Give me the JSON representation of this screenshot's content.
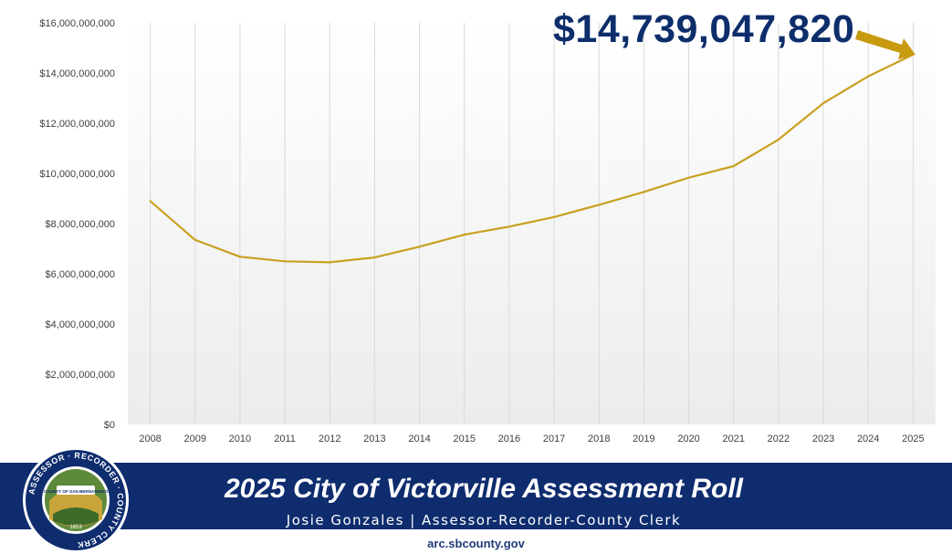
{
  "colors": {
    "line": "#c9a021",
    "gridline": "#d9d9d9",
    "callout_text": "#0d2e6b",
    "callout_arrow": "#c79a10",
    "footer_band": "#0e2c6e",
    "footer_text": "#ffffff",
    "url_text": "#1f3a78"
  },
  "callout": {
    "value_label": "$14,739,047,820",
    "arrow_icon": "arrow-icon"
  },
  "chart_data": {
    "type": "line",
    "title": "",
    "xlabel": "",
    "ylabel": "",
    "categories": [
      "2008",
      "2009",
      "2010",
      "2011",
      "2012",
      "2013",
      "2014",
      "2015",
      "2016",
      "2017",
      "2018",
      "2019",
      "2020",
      "2021",
      "2022",
      "2023",
      "2024",
      "2025"
    ],
    "series": [
      {
        "values": [
          8900000000,
          7350000000,
          6680000000,
          6500000000,
          6460000000,
          6650000000,
          7080000000,
          7560000000,
          7880000000,
          8260000000,
          8750000000,
          9260000000,
          9830000000,
          10290000000,
          11350000000,
          12800000000,
          13870000000,
          14739047820
        ]
      }
    ],
    "ylim": [
      0,
      16000000000
    ],
    "yticks": [
      0,
      2000000000,
      4000000000,
      6000000000,
      8000000000,
      10000000000,
      12000000000,
      14000000000,
      16000000000
    ],
    "ytick_labels": [
      "$0",
      "$2,000,000,000",
      "$4,000,000,000",
      "$6,000,000,000",
      "$8,000,000,000",
      "$10,000,000,000",
      "$12,000,000,000",
      "$14,000,000,000",
      "$16,000,000,000"
    ],
    "grid": "vertical",
    "legend": "none"
  },
  "footer": {
    "title": "2025 City of Victorville Assessment Roll",
    "subtitle": "Josie Gonzales | Assessor-Recorder-County Clerk",
    "url": "arc.sbcounty.gov",
    "seal": {
      "ring_text": "ASSESSOR · RECORDER · COUNTY CLERK",
      "banner_text": "COUNTY OF SAN BERNARDINO",
      "year": "1853",
      "icon": "county-seal-icon"
    }
  }
}
